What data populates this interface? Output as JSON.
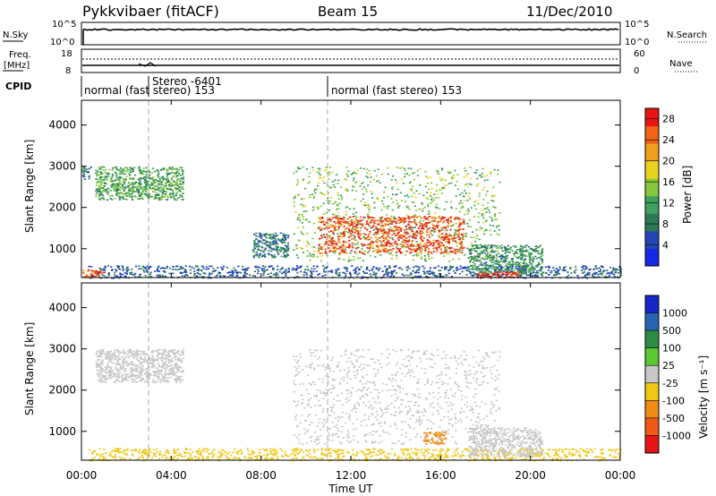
{
  "header": {
    "radar": "Pykkvibaer (fitACF)",
    "beam": "Beam 15",
    "date": "11/Dec/2010"
  },
  "noise_panel": {
    "left_label": "N.Sky",
    "right_label": "N.Search",
    "left_top_tick": "10^5",
    "left_bottom_tick": "10^0",
    "right_top_tick": "10^5",
    "right_bottom_tick": "10^0"
  },
  "freq_panel": {
    "left_label_1": "Freq.",
    "left_label_2": "[MHz]",
    "left_ticks": [
      "18",
      "8"
    ],
    "right_ticks": [
      "60",
      "0"
    ],
    "right_label": "Nave"
  },
  "cpid_panel": {
    "label": "CPID",
    "segments": [
      {
        "text": "normal (fast stereo) 153",
        "start_hour": 0
      },
      {
        "text": "Stereo -6401",
        "start_hour": 3.0
      },
      {
        "text": "normal (fast stereo) 153",
        "start_hour": 11.0
      }
    ]
  },
  "x_axis": {
    "label": "Time UT",
    "ticks": [
      "00:00",
      "04:00",
      "08:00",
      "12:00",
      "16:00",
      "20:00",
      "00:00"
    ],
    "range_hours": [
      0,
      24
    ]
  },
  "colors": {
    "power_scale": [
      "#1428e6",
      "#2346b4",
      "#2b7a55",
      "#3fa060",
      "#86c83c",
      "#e8d21e",
      "#f0a01e",
      "#f06414",
      "#e81414"
    ],
    "velocity_scale": [
      "#1428c8",
      "#2864b4",
      "#2e8c46",
      "#5ac832",
      "#c8c8c8",
      "#f0c814",
      "#f08c14",
      "#f05a14",
      "#e61414"
    ]
  },
  "chart_data": [
    {
      "type": "heatmap",
      "name": "power",
      "ylabel": "Slant Range [km]",
      "yticks": [
        "1000",
        "2000",
        "3000",
        "4000"
      ],
      "ylim": [
        300,
        4600
      ],
      "colorbar_label": "Power [dB]",
      "colorbar_ticks": [
        "4",
        "8",
        "12",
        "16",
        "20",
        "24",
        "28"
      ],
      "colorbar_range": [
        0,
        30
      ],
      "regions": [
        {
          "t": [
            0.0,
            0.4
          ],
          "r": [
            2700,
            3000
          ],
          "level": 8
        },
        {
          "t": [
            0.6,
            4.5
          ],
          "r": [
            2200,
            3000
          ],
          "level": 12
        },
        {
          "t": [
            0.3,
            24.0
          ],
          "r": [
            300,
            600
          ],
          "level": 6
        },
        {
          "t": [
            0.0,
            1.0
          ],
          "r": [
            320,
            500
          ],
          "level": 26
        },
        {
          "t": [
            7.6,
            9.2
          ],
          "r": [
            800,
            1400
          ],
          "level": 8
        },
        {
          "t": [
            9.4,
            18.6
          ],
          "r": [
            700,
            3000
          ],
          "level": 14
        },
        {
          "t": [
            10.5,
            17.0
          ],
          "r": [
            900,
            1800
          ],
          "level": 26
        },
        {
          "t": [
            17.2,
            20.5
          ],
          "r": [
            400,
            1100
          ],
          "level": 10
        },
        {
          "t": [
            17.6,
            19.5
          ],
          "r": [
            300,
            450
          ],
          "level": 28
        }
      ]
    },
    {
      "type": "heatmap",
      "name": "velocity",
      "ylabel": "Slant Range [km]",
      "yticks": [
        "1000",
        "2000",
        "3000",
        "4000"
      ],
      "ylim": [
        300,
        4600
      ],
      "colorbar_label": "Velocity [m s⁻¹]",
      "colorbar_ticks": [
        "1000",
        "500",
        "100",
        "25",
        "-25",
        "-100",
        "-500",
        "-1000"
      ],
      "regions": [
        {
          "t": [
            0.6,
            4.5
          ],
          "r": [
            2200,
            3000
          ],
          "v": 0
        },
        {
          "t": [
            9.4,
            18.6
          ],
          "r": [
            700,
            3000
          ],
          "v": 0
        },
        {
          "t": [
            0.3,
            24.0
          ],
          "r": [
            300,
            600
          ],
          "v": -50
        },
        {
          "t": [
            15.2,
            16.2
          ],
          "r": [
            700,
            1000
          ],
          "v": -300
        },
        {
          "t": [
            17.2,
            20.5
          ],
          "r": [
            400,
            1100
          ],
          "v": 0
        }
      ]
    }
  ]
}
